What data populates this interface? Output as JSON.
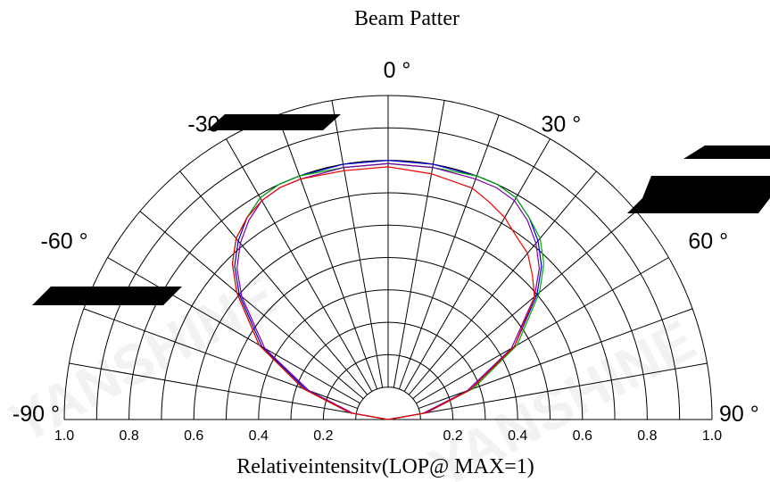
{
  "chart_data": {
    "type": "polar",
    "title": "Beam Patter",
    "xlabel": "Relativeintensitv(LOP@ MAX=1)",
    "angle_range": [
      -90,
      90
    ],
    "radial_range": [
      0,
      1
    ],
    "angle_ticks": [
      {
        "deg": -90,
        "label": "-90 °"
      },
      {
        "deg": -60,
        "label": "-60 °"
      },
      {
        "deg": -30,
        "label": "-30 °"
      },
      {
        "deg": 0,
        "label": "0 °"
      },
      {
        "deg": 30,
        "label": "30 °"
      },
      {
        "deg": 60,
        "label": "60 °"
      },
      {
        "deg": 90,
        "label": "90 °"
      }
    ],
    "radial_ticks": [
      {
        "value": -1.0,
        "label": "1.0"
      },
      {
        "value": -0.8,
        "label": "0.8"
      },
      {
        "value": -0.6,
        "label": "0.6"
      },
      {
        "value": -0.4,
        "label": "0.4"
      },
      {
        "value": -0.2,
        "label": "0.2"
      },
      {
        "value": 0.2,
        "label": "0.2"
      },
      {
        "value": 0.4,
        "label": "0.4"
      },
      {
        "value": 0.6,
        "label": "0.6"
      },
      {
        "value": 0.8,
        "label": "0.8"
      },
      {
        "value": 1.0,
        "label": "1.0"
      }
    ],
    "grid": true,
    "series": [
      {
        "color": "#0000cc",
        "angles": [
          -90,
          -80,
          -70,
          -60,
          -50,
          -45,
          -40,
          -35,
          -30,
          -25,
          -20,
          -10,
          0,
          10,
          20,
          25,
          30,
          35,
          40,
          45,
          50,
          60,
          70,
          80,
          90
        ],
        "values": [
          0.0,
          0.12,
          0.27,
          0.45,
          0.6,
          0.67,
          0.72,
          0.76,
          0.79,
          0.8,
          0.8,
          0.8,
          0.8,
          0.8,
          0.8,
          0.8,
          0.79,
          0.76,
          0.72,
          0.67,
          0.6,
          0.45,
          0.27,
          0.12,
          0.0
        ]
      },
      {
        "color": "#00aa00",
        "angles": [
          -90,
          -80,
          -70,
          -60,
          -50,
          -45,
          -40,
          -35,
          -30,
          -25,
          -20,
          -10,
          0,
          10,
          20,
          25,
          30,
          35,
          40,
          45,
          50,
          60,
          70,
          80,
          90
        ],
        "values": [
          0.0,
          0.12,
          0.28,
          0.46,
          0.61,
          0.68,
          0.73,
          0.76,
          0.79,
          0.8,
          0.8,
          0.79,
          0.79,
          0.79,
          0.8,
          0.8,
          0.79,
          0.76,
          0.73,
          0.68,
          0.61,
          0.46,
          0.28,
          0.12,
          0.0
        ]
      },
      {
        "color": "#7700aa",
        "angles": [
          -90,
          -80,
          -70,
          -60,
          -50,
          -45,
          -40,
          -35,
          -30,
          -25,
          -20,
          -10,
          0,
          10,
          20,
          25,
          30,
          35,
          40,
          45,
          50,
          60,
          70,
          80,
          90
        ],
        "values": [
          0.0,
          0.11,
          0.26,
          0.44,
          0.59,
          0.66,
          0.71,
          0.75,
          0.78,
          0.79,
          0.79,
          0.79,
          0.79,
          0.79,
          0.79,
          0.79,
          0.78,
          0.75,
          0.71,
          0.66,
          0.59,
          0.44,
          0.26,
          0.11,
          0.0
        ]
      },
      {
        "color": "#ee0000",
        "angles": [
          -90,
          -80,
          -70,
          -60,
          -50,
          -45,
          -40,
          -35,
          -30,
          -25,
          -20,
          -10,
          0,
          10,
          20,
          25,
          30,
          35,
          40,
          45,
          50,
          60,
          70,
          80,
          90
        ],
        "values": [
          0.0,
          0.12,
          0.28,
          0.46,
          0.61,
          0.68,
          0.73,
          0.76,
          0.78,
          0.79,
          0.79,
          0.78,
          0.78,
          0.77,
          0.76,
          0.74,
          0.72,
          0.69,
          0.67,
          0.63,
          0.59,
          0.45,
          0.27,
          0.12,
          0.0
        ]
      }
    ]
  }
}
